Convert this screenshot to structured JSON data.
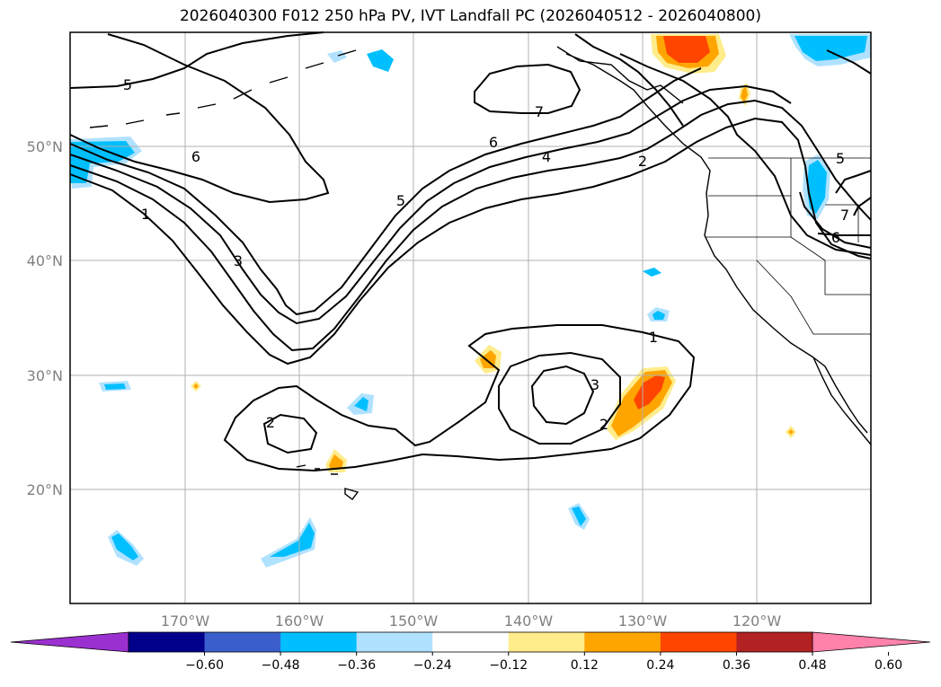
{
  "title": "2026040300 F012 250 hPa PV, IVT Landfall PC (2026040512 - 2026040800)",
  "lat_labels": [
    "50°N",
    "40°N",
    "30°N",
    "20°N"
  ],
  "lon_labels": [
    "170°W",
    "160°W",
    "150°W",
    "140°W",
    "130°W",
    "120°W"
  ],
  "contour_labels": [
    "5",
    "6",
    "1",
    "3",
    "5",
    "6",
    "7",
    "4",
    "2",
    "1",
    "3",
    "2",
    "2",
    "5",
    "6",
    "7"
  ],
  "colorbar": {
    "ticks": [
      "−0.60",
      "−0.48",
      "−0.36",
      "−0.24",
      "−0.12",
      "0.12",
      "0.24",
      "0.36",
      "0.48",
      "0.60"
    ],
    "colors": [
      "#9b30d0",
      "#00008b",
      "#3a5fcd",
      "#00bfff",
      "#b0e2ff",
      "#ffffff",
      "#ffec8b",
      "#ffa500",
      "#ff4500",
      "#b22222",
      "#ff82ab"
    ]
  },
  "colors": {
    "positive_light": "#ffec8b",
    "positive_mid": "#ffa500",
    "positive_strong": "#ff4500",
    "negative_light": "#b0e2ff",
    "negative_mid": "#00bfff"
  }
}
